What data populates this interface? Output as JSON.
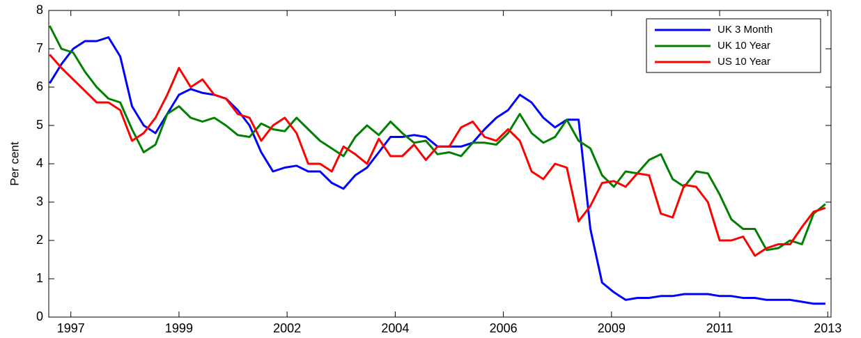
{
  "chart_data": {
    "type": "line",
    "y_label": "Per cent",
    "x": [
      1996.55,
      1996.8,
      1997.05,
      1997.3,
      1997.55,
      1997.8,
      1998.05,
      1998.3,
      1998.55,
      1998.8,
      1999.05,
      1999.3,
      1999.55,
      1999.8,
      2000.05,
      2000.3,
      2000.55,
      2000.8,
      2001.05,
      2001.3,
      2001.55,
      2001.8,
      2002.05,
      2002.3,
      2002.55,
      2002.8,
      2003.05,
      2003.3,
      2003.55,
      2003.8,
      2004.05,
      2004.3,
      2004.55,
      2004.8,
      2005.05,
      2005.3,
      2005.55,
      2005.8,
      2006.05,
      2006.3,
      2006.55,
      2006.8,
      2007.05,
      2007.3,
      2007.55,
      2007.8,
      2008.05,
      2008.3,
      2008.55,
      2008.8,
      2009.05,
      2009.3,
      2009.55,
      2009.8,
      2010.05,
      2010.3,
      2010.55,
      2010.8,
      2011.05,
      2011.3,
      2011.55,
      2011.8,
      2012.05,
      2012.3,
      2012.55,
      2012.8,
      2013.05
    ],
    "series": [
      {
        "name": "UK 3 Month",
        "color": "#0000ff",
        "values": [
          6.1,
          6.6,
          7.0,
          7.2,
          7.2,
          7.3,
          6.8,
          5.5,
          5.0,
          4.8,
          5.3,
          5.8,
          5.95,
          5.85,
          5.8,
          5.7,
          5.4,
          5.0,
          4.3,
          3.8,
          3.9,
          3.95,
          3.8,
          3.8,
          3.5,
          3.35,
          3.7,
          3.9,
          4.3,
          4.7,
          4.7,
          4.75,
          4.7,
          4.45,
          4.45,
          4.45,
          4.55,
          4.9,
          5.2,
          5.4,
          5.8,
          5.6,
          5.2,
          4.95,
          5.15,
          5.15,
          2.3,
          0.9,
          0.65,
          0.45,
          0.5,
          0.5,
          0.55,
          0.55,
          0.6,
          0.6,
          0.6,
          0.55,
          0.55,
          0.5,
          0.5,
          0.45,
          0.45,
          0.45,
          0.4,
          0.35,
          0.35
        ]
      },
      {
        "name": "UK 10 Year",
        "color": "#008000",
        "values": [
          7.6,
          7.0,
          6.9,
          6.4,
          6.0,
          5.7,
          5.6,
          4.9,
          4.3,
          4.5,
          5.3,
          5.5,
          5.2,
          5.1,
          5.2,
          5.0,
          4.75,
          4.7,
          5.05,
          4.9,
          4.85,
          5.2,
          4.9,
          4.6,
          4.4,
          4.2,
          4.7,
          5.0,
          4.75,
          5.1,
          4.8,
          4.55,
          4.6,
          4.25,
          4.3,
          4.2,
          4.55,
          4.55,
          4.5,
          4.8,
          5.3,
          4.8,
          4.55,
          4.7,
          5.15,
          4.6,
          4.4,
          3.7,
          3.4,
          3.8,
          3.75,
          4.1,
          4.25,
          3.6,
          3.4,
          3.8,
          3.75,
          3.2,
          2.55,
          2.3,
          2.3,
          1.75,
          1.8,
          2.0,
          1.9,
          2.7,
          2.95
        ]
      },
      {
        "name": "US 10 Year",
        "color": "#ff0000",
        "values": [
          6.85,
          6.5,
          6.2,
          5.9,
          5.6,
          5.6,
          5.4,
          4.6,
          4.8,
          5.2,
          5.8,
          6.5,
          6.0,
          6.2,
          5.8,
          5.7,
          5.3,
          5.2,
          4.6,
          5.0,
          5.2,
          4.8,
          4.0,
          4.0,
          3.8,
          4.45,
          4.25,
          4.0,
          4.65,
          4.2,
          4.2,
          4.5,
          4.1,
          4.45,
          4.45,
          4.95,
          5.1,
          4.7,
          4.6,
          4.9,
          4.6,
          3.8,
          3.6,
          4.0,
          3.9,
          2.5,
          2.9,
          3.5,
          3.55,
          3.4,
          3.75,
          3.7,
          2.7,
          2.6,
          3.45,
          3.4,
          3.0,
          2.0,
          2.0,
          2.1,
          1.6,
          1.8,
          1.9,
          1.9,
          2.35,
          2.75,
          2.85
        ]
      }
    ],
    "xlim": [
      1996.53,
      2013.17
    ],
    "xticks": [
      {
        "value": 1997.0,
        "label": "1997"
      },
      {
        "value": 1999.3,
        "label": "1999"
      },
      {
        "value": 2001.6,
        "label": "2002"
      },
      {
        "value": 2003.9,
        "label": "2004"
      },
      {
        "value": 2006.2,
        "label": "2006"
      },
      {
        "value": 2008.5,
        "label": "2009"
      },
      {
        "value": 2010.8,
        "label": "2011"
      },
      {
        "value": 2013.1,
        "label": "2013"
      }
    ],
    "ylim": [
      0,
      8
    ],
    "yticks": [
      0,
      1,
      2,
      3,
      4,
      5,
      6,
      7,
      8
    ],
    "legend": "upper right",
    "grid": false
  }
}
